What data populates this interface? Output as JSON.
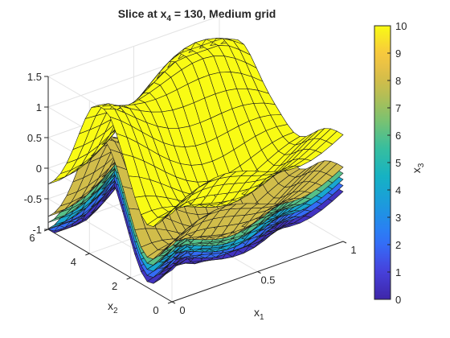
{
  "chart_data": {
    "type": "surface",
    "title": {
      "prefix": "Slice  at  x",
      "sub": "4",
      "suffix": "  =  130,  Medium  grid"
    },
    "x1": {
      "label": "x",
      "sub": "1",
      "range": [
        0,
        1
      ],
      "ticks": [
        0,
        0.5,
        1
      ],
      "tick_labels": [
        "0",
        "0.5",
        "1"
      ]
    },
    "x2": {
      "label": "x",
      "sub": "2",
      "range": [
        0,
        6
      ],
      "ticks": [
        0,
        2,
        4,
        6
      ],
      "tick_labels": [
        "0",
        "2",
        "4",
        "6"
      ]
    },
    "z": {
      "range": [
        -1,
        1.5
      ],
      "ticks": [
        -1,
        -0.5,
        0,
        0.5,
        1,
        1.5
      ],
      "tick_labels": [
        "-1",
        "-0.5",
        "0",
        "0.5",
        "1",
        "1.5"
      ]
    },
    "colorbar": {
      "label": "x",
      "sub": "3",
      "range": [
        0,
        10
      ],
      "ticks": [
        0,
        1,
        2,
        3,
        4,
        5,
        6,
        7,
        8,
        9,
        10
      ],
      "tick_labels": [
        "0",
        "1",
        "2",
        "3",
        "4",
        "5",
        "6",
        "7",
        "8",
        "9",
        "10"
      ],
      "colormap": "parula"
    },
    "grid": true,
    "grid_size": {
      "x1": 17,
      "x2": 21
    },
    "colormap_stops": [
      "#3e26a8",
      "#4743e0",
      "#2f76fb",
      "#1d97e0",
      "#14b1c5",
      "#38bf9d",
      "#83c26a",
      "#c8bc4c",
      "#f7c342",
      "#f9fb14"
    ],
    "slices": [
      {
        "x3": 0.5,
        "z": "base(x1,x2) - 0.78"
      },
      {
        "x3": 2,
        "z": "base(x1,x2) - 0.68"
      },
      {
        "x3": 4,
        "z": "base(x1,x2) - 0.58"
      },
      {
        "x3": 6,
        "z": "base(x1,x2) - 0.48"
      },
      {
        "x3": 8,
        "z": "base(x1,x2) - 0.38"
      },
      {
        "x3": 10,
        "z": "base(x1,x2) + 0.15"
      }
    ]
  }
}
